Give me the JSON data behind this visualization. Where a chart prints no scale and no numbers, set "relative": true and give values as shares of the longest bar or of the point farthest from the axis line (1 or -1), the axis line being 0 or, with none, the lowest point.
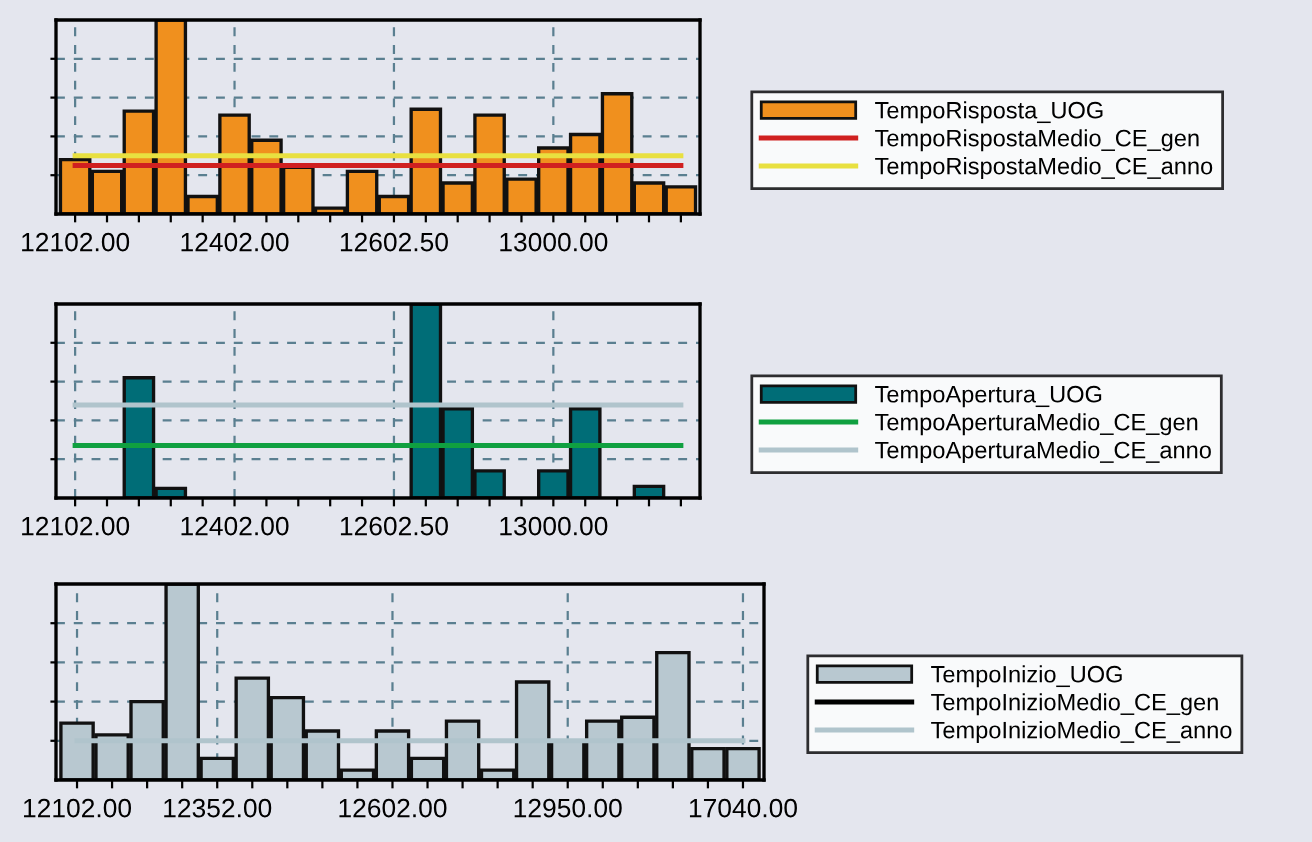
{
  "chart_data": [
    {
      "type": "bar",
      "relative": true,
      "grid": true,
      "legend": "right",
      "categories": [
        "12102.00",
        null,
        null,
        null,
        null,
        "12402.00",
        null,
        null,
        null,
        null,
        "12602.50",
        null,
        null,
        null,
        null,
        "13000.00",
        null,
        null,
        null,
        null
      ],
      "series": [
        {
          "name": "TempoRisposta_UOG",
          "color": "#f0901e",
          "values": [
            0.28,
            0.22,
            0.53,
            1.0,
            0.09,
            0.51,
            0.38,
            0.24,
            0.03,
            0.22,
            0.09,
            0.54,
            0.16,
            0.51,
            0.18,
            0.34,
            0.41,
            0.62,
            0.16,
            0.14
          ]
        },
        {
          "name": "TempoRispostaMedio_CE_gen",
          "type": "line",
          "color": "#d02020",
          "values": [
            0.25,
            0.25,
            0.25,
            0.25,
            0.25,
            0.25,
            0.25,
            0.25,
            0.25,
            0.25,
            0.25,
            0.25,
            0.25,
            0.25,
            0.25,
            0.25,
            0.25,
            0.25,
            0.25,
            0.25
          ]
        },
        {
          "name": "TempoRispostaMedio_CE_anno",
          "type": "line",
          "color": "#e8e040",
          "values": [
            0.3,
            0.3,
            0.3,
            0.3,
            0.3,
            0.3,
            0.3,
            0.3,
            0.3,
            0.3,
            0.3,
            0.3,
            0.3,
            0.3,
            0.3,
            0.3,
            0.3,
            0.3,
            0.3,
            0.3
          ]
        }
      ]
    },
    {
      "type": "bar",
      "relative": true,
      "grid": true,
      "legend": "right",
      "categories": [
        "12102.00",
        null,
        null,
        null,
        null,
        "12402.00",
        null,
        null,
        null,
        null,
        "12602.50",
        null,
        null,
        null,
        null,
        "13000.00",
        null,
        null,
        null,
        null
      ],
      "series": [
        {
          "name": "TempoApertura_UOG",
          "color": "#006d77",
          "values": [
            0,
            0,
            0.62,
            0.05,
            0,
            0,
            0,
            0,
            0,
            0,
            0,
            1.0,
            0.46,
            0.14,
            0,
            0.14,
            0.46,
            0,
            0.06,
            0
          ]
        },
        {
          "name": "TempoAperturaMedio_CE_gen",
          "type": "line",
          "color": "#10a040",
          "values": [
            0.27,
            0.27,
            0.27,
            0.27,
            0.27,
            0.27,
            0.27,
            0.27,
            0.27,
            0.27,
            0.27,
            0.27,
            0.27,
            0.27,
            0.27,
            0.27,
            0.27,
            0.27,
            0.27,
            0.27
          ]
        },
        {
          "name": "TempoAperturaMedio_CE_anno",
          "type": "line",
          "color": "#b0c4cc",
          "values": [
            0.48,
            0.48,
            0.48,
            0.48,
            0.48,
            0.48,
            0.48,
            0.48,
            0.48,
            0.48,
            0.48,
            0.48,
            0.48,
            0.48,
            0.48,
            0.48,
            0.48,
            0.48,
            0.48,
            0.48
          ]
        }
      ]
    },
    {
      "type": "bar",
      "relative": true,
      "grid": true,
      "legend": "right",
      "categories": [
        "12102.00",
        null,
        null,
        null,
        "12352.00",
        null,
        null,
        null,
        null,
        "12602.00",
        null,
        null,
        null,
        null,
        "12950.00",
        null,
        null,
        null,
        null,
        "17040.00"
      ],
      "series": [
        {
          "name": "TempoInizio_UOG",
          "color": "#b8c8d0",
          "values": [
            0.29,
            0.23,
            0.4,
            1.0,
            0.11,
            0.52,
            0.42,
            0.25,
            0.05,
            0.25,
            0.11,
            0.3,
            0.05,
            0.5,
            0.2,
            0.3,
            0.32,
            0.65,
            0.16,
            0.16
          ]
        },
        {
          "name": "TempoInizioMedio_CE_gen",
          "type": "line",
          "color": "#000000",
          "values": [
            null,
            null,
            null,
            null,
            null,
            null,
            null,
            null,
            null,
            null,
            null,
            null,
            null,
            null,
            null,
            null,
            null,
            null,
            null,
            null
          ]
        },
        {
          "name": "TempoInizioMedio_CE_anno",
          "type": "line",
          "color": "#b0c4cc",
          "values": [
            0.2,
            0.2,
            0.2,
            0.2,
            0.2,
            0.2,
            0.2,
            0.2,
            0.2,
            0.2,
            0.2,
            0.2,
            0.2,
            0.2,
            0.2,
            0.2,
            0.2,
            0.2,
            0.2,
            0.2
          ]
        }
      ]
    }
  ]
}
